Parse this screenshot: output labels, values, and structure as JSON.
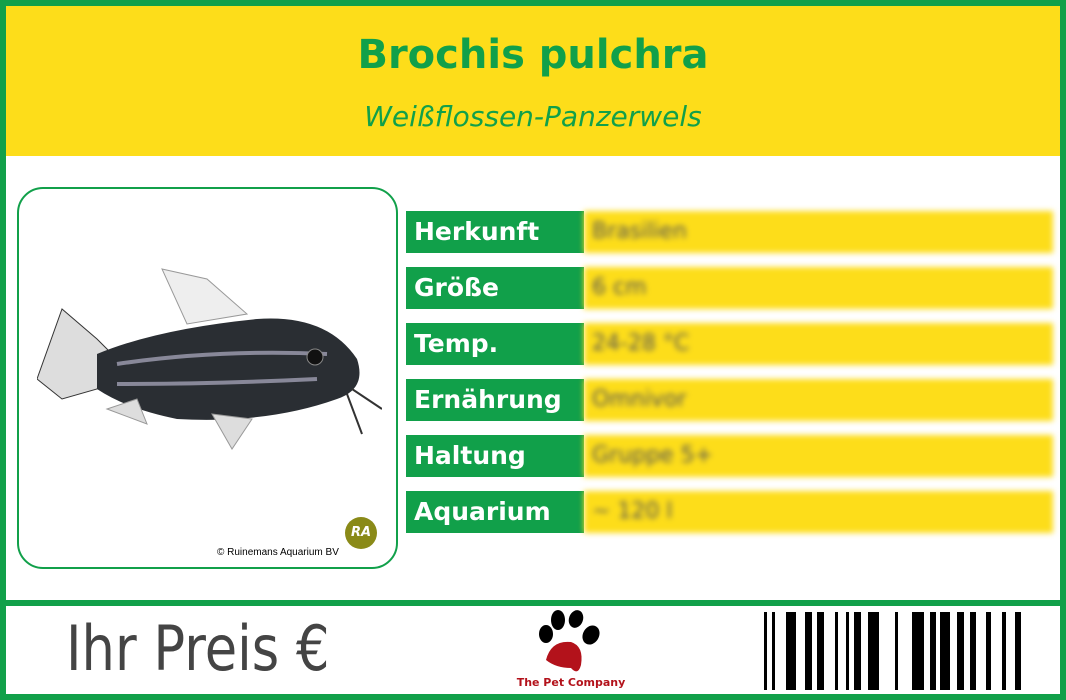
{
  "header": {
    "title": "Brochis pulchra",
    "subtitle": "Weißflossen-Panzerwels"
  },
  "photo": {
    "credit": "© Ruinemans Aquarium BV",
    "logo_text": "RA"
  },
  "info": [
    {
      "label": "Herkunft",
      "value": "Brasilien"
    },
    {
      "label": "Größe",
      "value": "6 cm"
    },
    {
      "label": "Temp.",
      "value": "24-28 °C"
    },
    {
      "label": "Ernährung",
      "value": "Omnivor"
    },
    {
      "label": "Haltung",
      "value": "Gruppe 5+"
    },
    {
      "label": "Aquarium",
      "value": "~ 120 l"
    }
  ],
  "footer": {
    "price_label": "Ihr Preis €",
    "company": "The Pet Company"
  },
  "colors": {
    "green": "#11a04a",
    "yellow": "#fddd1a",
    "paw_red": "#b3121b"
  }
}
